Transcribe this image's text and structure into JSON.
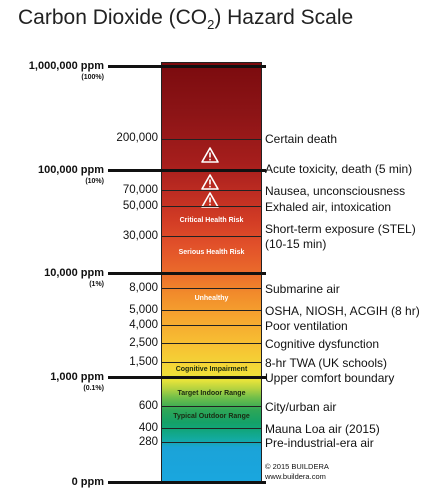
{
  "title": {
    "prefix": "Carbon Dioxide (CO",
    "subscript": "2",
    "suffix": ") Hazard Scale"
  },
  "major_levels": [
    {
      "label": "1,000,000 ppm",
      "percent": "(100%)"
    },
    {
      "label": "100,000 ppm",
      "percent": "(10%)"
    },
    {
      "label": "10,000 ppm",
      "percent": "(1%)"
    },
    {
      "label": "1,000 ppm",
      "percent": "(0.1%)"
    },
    {
      "label": "0 ppm",
      "percent": ""
    }
  ],
  "minor_levels": [
    {
      "value": "200,000",
      "description": "Certain death"
    },
    {
      "value": "",
      "description": "Acute toxicity, death (5 min)"
    },
    {
      "value": "70,000",
      "description": "Nausea, unconsciousness"
    },
    {
      "value": "50,000",
      "description": "Exhaled air, intoxication"
    },
    {
      "value": "30,000",
      "description": "Short-term exposure (STEL)"
    },
    {
      "value": "",
      "description": "(10-15 min)"
    },
    {
      "value": "",
      "description": "Submarine air"
    },
    {
      "value": "8,000",
      "description": ""
    },
    {
      "value": "5,000",
      "description": "OSHA, NIOSH, ACGIH (8 hr)"
    },
    {
      "value": "4,000",
      "description": "Poor ventilation"
    },
    {
      "value": "2,500",
      "description": "Cognitive dysfunction"
    },
    {
      "value": "1,500",
      "description": "8-hr TWA (UK schools)"
    },
    {
      "value": "",
      "description": "Upper comfort boundary"
    },
    {
      "value": "600",
      "description": "City/urban air"
    },
    {
      "value": "400",
      "description": "Mauna Loa air (2015)"
    },
    {
      "value": "280",
      "description": "Pre-industrial-era air"
    }
  ],
  "zones": {
    "critical": "Critical Health Risk",
    "serious": "Serious Health Risk",
    "unhealthy": "Unhealthy",
    "cognitive": "Cognitive Impairment",
    "target_indoor": "Target Indoor Range",
    "typical_outdoor": "Typical Outdoor Range"
  },
  "warning_icon": "warning-triangle-icon",
  "credit": {
    "line1": "© 2015 BUILDERA",
    "line2": "www.buildera.com"
  },
  "colors": {
    "top": "#7b0b0e",
    "orange": "#f18a2b",
    "yellow": "#f2dd38",
    "green": "#14a167",
    "blue": "#1aa6de"
  }
}
